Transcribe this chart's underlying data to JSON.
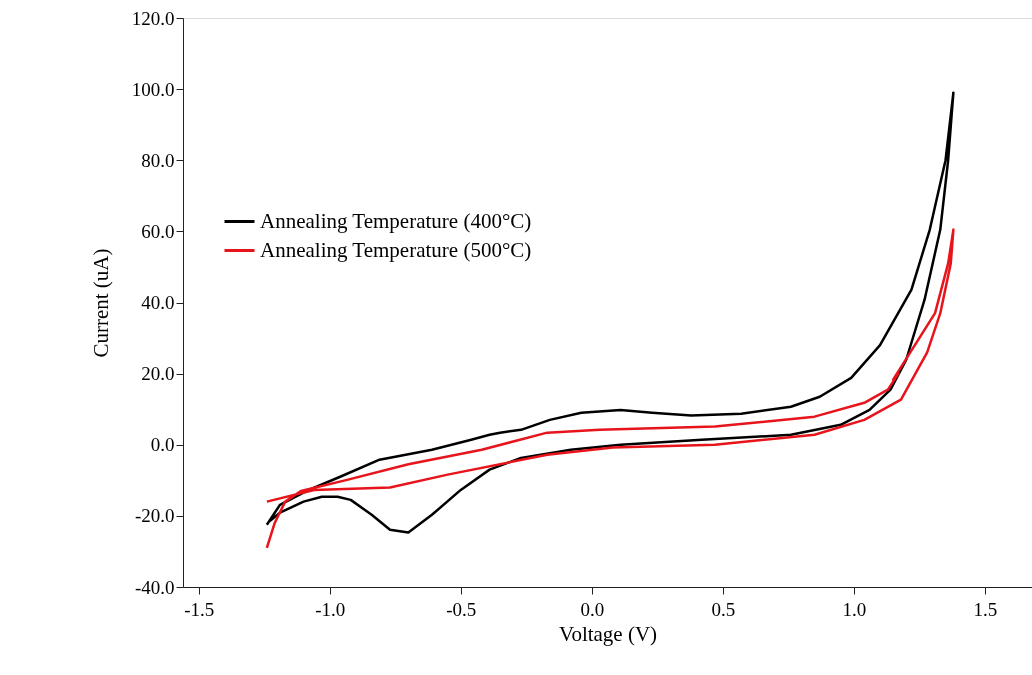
{
  "chart_data": {
    "type": "line",
    "xlabel": "Voltage (V)",
    "ylabel": "Current (uA)",
    "xlim": [
      -1.56,
      1.68
    ],
    "ylim": [
      -40,
      120
    ],
    "xticks": [
      -1.5,
      {
        "value": -1,
        "label": "-1.0"
      },
      -0.5,
      {
        "value": 0,
        "label": "0.0"
      },
      0.5,
      {
        "value": 1,
        "label": "1.0"
      },
      1.5
    ],
    "yticks": [
      {
        "value": -40,
        "label": "-40.0"
      },
      {
        "value": -20,
        "label": "-20.0"
      },
      {
        "value": 0,
        "label": "0.0"
      },
      {
        "value": 20,
        "label": "20.0"
      },
      {
        "value": 40,
        "label": "40.0"
      },
      {
        "value": 60,
        "label": "60.0"
      },
      {
        "value": 80,
        "label": "80.0"
      },
      {
        "value": 100,
        "label": "100.0"
      },
      {
        "value": 120,
        "label": "120.0"
      }
    ],
    "grid": false,
    "legend": "top left",
    "line_style": "solid",
    "series": [
      {
        "name": "Annealing Temperature (400°C)",
        "color": "#000000",
        "x": [
          -1.24,
          -1.19,
          -1.08,
          -0.96,
          -0.81,
          -0.61,
          -0.46,
          -0.39,
          -0.35,
          -0.27,
          -0.16,
          -0.04,
          0.11,
          0.23,
          0.38,
          0.57,
          0.76,
          0.87,
          0.99,
          1.1,
          1.22,
          1.29,
          1.35,
          1.38,
          1.36,
          1.33,
          1.27,
          1.2,
          1.14,
          1.06,
          0.95,
          0.76,
          0.42,
          0.11,
          -0.08,
          -0.27,
          -0.39,
          -0.5,
          -0.61,
          -0.7,
          -0.77,
          -0.84,
          -0.92,
          -0.97,
          -1.03,
          -1.1,
          -1.19,
          -1.23
        ],
        "values": [
          -22.5,
          -16.9,
          -12.7,
          -9,
          -4.2,
          -1.4,
          1.4,
          2.8,
          3.4,
          4.2,
          7,
          9,
          9.8,
          9,
          8.2,
          8.7,
          10.7,
          13.5,
          18.8,
          28,
          43.6,
          60.5,
          80,
          99,
          80,
          60.5,
          40.8,
          23.9,
          15.5,
          9.8,
          5.6,
          2.8,
          1.4,
          0,
          -1.4,
          -3.7,
          -7,
          -12.7,
          -19.7,
          -24.7,
          -23.9,
          -19.7,
          -15.5,
          -14.6,
          -14.6,
          -16,
          -19.1,
          -21.5
        ]
      },
      {
        "name": "Annealing Temperature (500°C)",
        "color": "#e8141c",
        "x": [
          -1.24,
          -1.21,
          -1.17,
          -1.11,
          -0.93,
          -0.7,
          -0.42,
          -0.17,
          0.03,
          0.47,
          0.85,
          1.04,
          1.13,
          1.17,
          1.15,
          1.31,
          1.36,
          1.38,
          1.37,
          1.33,
          1.28,
          1.18,
          1.04,
          0.85,
          0.47,
          0.08,
          -0.17,
          -0.55,
          -0.77,
          -1.06,
          -1.24
        ],
        "values": [
          -29,
          -22,
          -16,
          -13,
          -9.8,
          -5.5,
          -1.4,
          3.4,
          4.2,
          5.1,
          7.9,
          11.8,
          15.5,
          20,
          18.3,
          37,
          51,
          60.5,
          51,
          37,
          26,
          12.7,
          7,
          2.8,
          0,
          -0.8,
          -2.8,
          -8.4,
          -12,
          -12.7,
          -16
        ]
      }
    ]
  }
}
